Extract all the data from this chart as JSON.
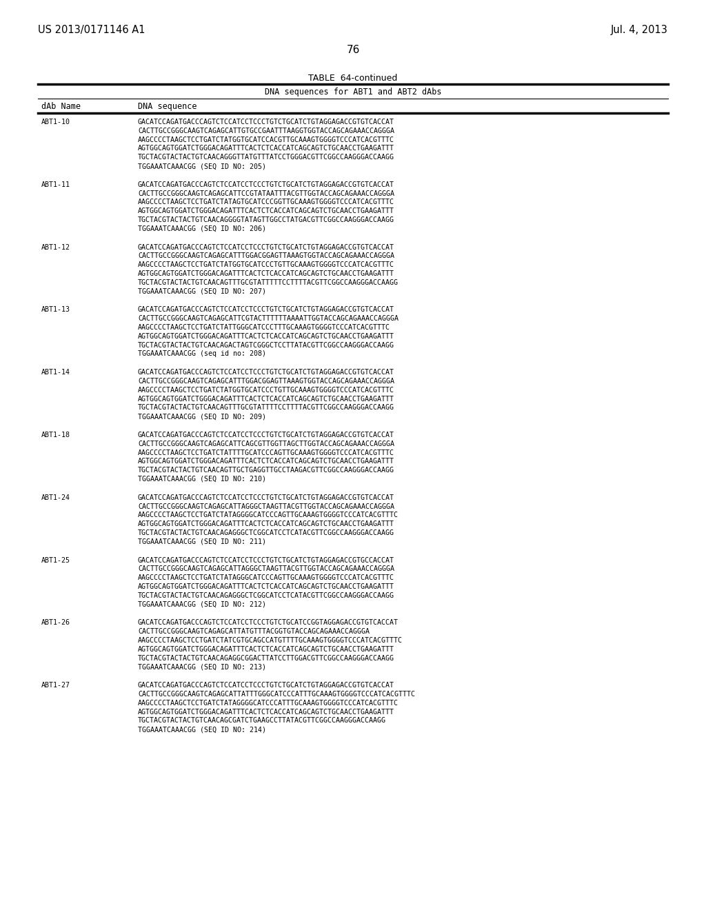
{
  "header_left": "US 2013/0171146 A1",
  "header_right": "Jul. 4, 2013",
  "page_number": "76",
  "table_title": "TABLE  64-continued",
  "table_subtitle": "DNA sequences for ABT1 and ABT2 dAbs",
  "col1_header": "dAb Name",
  "col2_header": "DNA sequence",
  "background_color": "#ffffff",
  "text_color": "#000000",
  "entries": [
    {
      "name": "ABT1-10",
      "lines": [
        "GACATCCAGATGACCCAGTCTCCATCCTCCCTGTCTGCATCTGTAGGAGACCGTGTCACCAT",
        "CACTTGCCGGGCAAGTCAGAGCATTGTGCCGAATTTAAGGTGGTACCAGCAGAAACCAGGGA",
        "AAGCCCCTAAGCTCCTGATCTATGGTGCATCCACGTTGCAAAGTGGGGTCCCATCACGTTTC",
        "AGTGGCAGTGGATCTGGGACAGATTTCACTCTCACCATCAGCAGTCTGCAACCTGAAGATTT",
        "TGCTACGTACTACTGTCAACAGGGTTATGTTTATCCTGGGACGTTCGGCCAAGGGACCAAGG",
        "TGGAAATCAAACGG (SEQ ID NO: 205)"
      ]
    },
    {
      "name": "ABT1-11",
      "lines": [
        "GACATCCAGATGACCCAGTCTCCATCCTCCCTGTCTGCATCTGTAGGAGACCGTGTCACCAT",
        "CACTTGCCGGGCAAGTCAGAGCATTCCGTATAATTTACGTTGGTACCAGCAGAAACCAGGGA",
        "AAGCCCCTAAGCTCCTGATCTATAGTGCATCCCGGTTGCAAAGTGGGGTCCCATCACGTTTC",
        "AGTGGCAGTGGATCTGGGACAGATTTCACTCTCACCATCAGCAGTCTGCAACCTGAAGATTT",
        "TGCTACGTACTACTGTCAACAGGGGTATAGTTGGCCTATGACGTTCGGCCAAGGGACCAAGG",
        "TGGAAATCAAACGG (SEQ ID NO: 206)"
      ]
    },
    {
      "name": "ABT1-12",
      "lines": [
        "GACATCCAGATGACCCAGTCTCCATCCTCCCTGTCTGCATCTGTAGGAGACCGTGTCACCAT",
        "CACTTGCCGGGCAAGTCAGAGCATTTGGACGGAGTTAAAGTGGTACCAGCAGAAACCAGGGA",
        "AAGCCCCTAAGCTCCTGATCTATGGTGCATCCCTGTTGCAAAGTGGGGTCCCATCACGTTTC",
        "AGTGGCAGTGGATCTGGGACAGATTTCACTCTCACCATCAGCAGTCTGCAACCTGAAGATTT",
        "TGCTACGTACTACTGTCAACAGTTTGCGTATTTTTCCTTTTACGTTCGGCCAAGGGACCAAGG",
        "TGGAAATCAAACGG (SEQ ID NO: 207)"
      ]
    },
    {
      "name": "ABT1-13",
      "lines": [
        "GACATCCAGATGACCCAGTCTCCATCCTCCCTGTCTGCATCTGTAGGAGACCGTGTCACCAT",
        "CACTTGCCGGGCAAGTCAGAGCATTCGTACTTTTTTAAAATTGGTACCAGCAGAAACCAGGGA",
        "AAGCCCCTAAGCTCCTGATCTATTGGGCATCCCTTTGCAAAGTGGGGTCCCATCACGTTTC",
        "AGTGGCAGTGGATCTGGGACAGATTTCACTCTCACCATCAGCAGTCTGCAACCTGAAGATTT",
        "TGCTACGTACTACTGTCAACAGACTAGTCGGGCTCCTTATACGTTCGGCCAAGGGACCAAGG",
        "TGGAAATCAAACGG (seq id no: 208)"
      ]
    },
    {
      "name": "ABT1-14",
      "lines": [
        "GACATCCAGATGACCCAGTCTCCATCCTCCCTGTCTGCATCTGTAGGAGACCGTGTCACCAT",
        "CACTTGCCGGGCAAGTCAGAGCATTTGGACGGAGTTAAAGTGGTACCAGCAGAAACCAGGGA",
        "AAGCCCCTAAGCTCCTGATCTATGGTGCATCCCTGTTGCAAAGTGGGGTCCCATCACGTTTC",
        "AGTGGCAGTGGATCTGGGACAGATTTCACTCTCACCATCAGCAGTCTGCAACCTGAAGATTT",
        "TGCTACGTACTACTGTCAACAGTTTGCGTATTTTCCTTTTACGTTCGGCCAAGGGACCAAGG",
        "TGGAAATCAAACGG (SEQ ID NO: 209)"
      ]
    },
    {
      "name": "ABT1-18",
      "lines": [
        "GACATCCAGATGACCCAGTCTCCATCCTCCCTGTCTGCATCTGTAGGAGACCGTGTCACCAT",
        "CACTTGCCGGGCAAGTCAGAGCATTCAGCGTTGGTTAGCTTGGTACCAGCAGAAACCAGGGA",
        "AAGCCCCTAAGCTCCTGATCTATTTTGCATCCCAGTTGCAAAGTGGGGTCCCATCACGTTTC",
        "AGTGGCAGTGGATCTGGGACAGATTTCACTCTCACCATCAGCAGTCTGCAACCTGAAGATTT",
        "TGCTACGTACTACTGTCAACAGTTGCTGAGGTTGCCTAAGACGTTCGGCCAAGGGACCAAGG",
        "TGGAAATCAAACGG (SEQ ID NO: 210)"
      ]
    },
    {
      "name": "ABT1-24",
      "lines": [
        "GACATCCAGATGACCCAGTCTCCATCCTCCCTGTCTGCATCTGTAGGAGACCGTGTCACCAT",
        "CACTTGCCGGGCAAGTCAGAGCATTAGGGCTAAGTTACGTTGGTACCAGCAGAAACCAGGGA",
        "AAGCCCCTAAGCTCCTGATCTATAGGGGCATCCCAGTTGCAAAGTGGGGTCCCATCACGTTTC",
        "AGTGGCAGTGGATCTGGGACAGATTTCACTCTCACCATCAGCAGTCTGCAACCTGAAGATTT",
        "TGCTACGTACTACTGTCAACAGAGGGCTCGGCATCCTCATACGTTCGGCCAAGGGACCAAGG",
        "TGGAAATCAAACGG (SEQ ID NO: 211)"
      ]
    },
    {
      "name": "ABT1-25",
      "lines": [
        "GACATCCAGATGACCCAGTCTCCATCCTCCCTGTCTGCATCTGTAGGAGACCGTGCCACCAT",
        "CACTTGCCGGGCAAGTCAGAGCATTAGGGCTAAGTTACGTTGGTACCAGCAGAAACCAGGGA",
        "AAGCCCCTAAGCTCCTGATCTATAGGGCATCCCAGTTGCAAAGTGGGGTCCCATCACGTTTC",
        "AGTGGCAGTGGATCTGGGACAGATTTCACTCTCACCATCAGCAGTCTGCAACCTGAAGATTT",
        "TGCTACGTACTACTGTCAACAGAGGGCTCGGCATCCTCATACGTTCGGCCAAGGGACCAAGG",
        "TGGAAATCAAACGG (SEQ ID NO: 212)"
      ]
    },
    {
      "name": "ABT1-26",
      "lines": [
        "GACATCCAGATGACCCAGTCTCCATCCTCCCTGTCTGCATCCGGTAGGAGACCGTGTCACCAT",
        "CACTTGCCGGGCAAGTCAGAGCATTATGTTTACGGTGTACCAGCAGAAACCAGGGA",
        "AAGCCCCTAAGCTCCTGATCTATCGTGCAGCCATGTTTTGCAAAGTGGGGTCCCATCACGTTTC",
        "AGTGGCAGTGGATCTGGGACAGATTTCACTCTCACCATCAGCAGTCTGCAACCTGAAGATTT",
        "TGCTACGTACTACTGTCAACAGAGGCGGACTTATCCTTGGACGTTCGGCCAAGGGACCAAGG",
        "TGGAAATCAAACGG (SEQ ID NO: 213)"
      ]
    },
    {
      "name": "ABT1-27",
      "lines": [
        "GACATCCAGATGACCCAGTCTCCATCCTCCCTGTCTGCATCTGTAGGAGACCGTGTCACCAT",
        "CACTTGCCGGGCAAGTCAGAGCATTATTTGGGCATCCCATTTGCAAAGTGGGGTCCCATCACGTTTC",
        "AAGCCCCTAAGCTCCTGATCTATAGGGGCATCCCATTTGCAAAGTGGGGTCCCATCACGTTTC",
        "AGTGGCAGTGGATCTGGGACAGATTTCACTCTCACCATCAGCAGTCTGCAACCTGAAGATTT",
        "TGCTACGTACTACTGTCAACAGCGATCTGAAGCCTTATACGTTCGGCCAAGGGACCAAGG",
        "TGGAAATCAAACGG (SEQ ID NO: 214)"
      ]
    }
  ]
}
